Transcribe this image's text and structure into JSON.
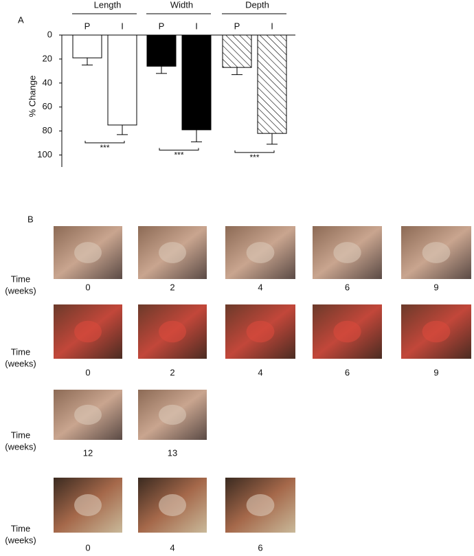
{
  "chart_data": {
    "type": "bar",
    "panel_label": "A",
    "ylabel": "% Change",
    "categories": [
      "P",
      "I"
    ],
    "series": [
      {
        "name": "Length",
        "color": "#ffffff",
        "values": [
          19,
          75
        ],
        "errors": [
          6,
          8
        ],
        "significance": "***"
      },
      {
        "name": "Width",
        "color": "#000000",
        "values": [
          26,
          79
        ],
        "errors": [
          6,
          10
        ],
        "significance": "***"
      },
      {
        "name": "Depth",
        "color": "hatch",
        "values": [
          27,
          82
        ],
        "errors": [
          6,
          9
        ],
        "significance": "***"
      }
    ],
    "ylim": [
      0,
      110
    ],
    "yticks": [
      0,
      20,
      40,
      60,
      80,
      100
    ],
    "inverted": true,
    "grid": false
  },
  "panel_b": {
    "panel_label": "B",
    "rows": [
      {
        "time_label": [
          "Time",
          "(weeks)"
        ],
        "weeks": [
          "0",
          "2",
          "4",
          "6",
          "9"
        ]
      },
      {
        "time_label": [
          "Time",
          "(weeks)"
        ],
        "weeks": [
          "0",
          "2",
          "4",
          "6",
          "9"
        ]
      },
      {
        "time_label": [
          "Time",
          "(weeks)"
        ],
        "weeks": [
          "12",
          "13"
        ]
      },
      {
        "time_label": [
          "Time",
          "(weeks)"
        ],
        "weeks": [
          "0",
          "4",
          "6"
        ]
      }
    ]
  }
}
